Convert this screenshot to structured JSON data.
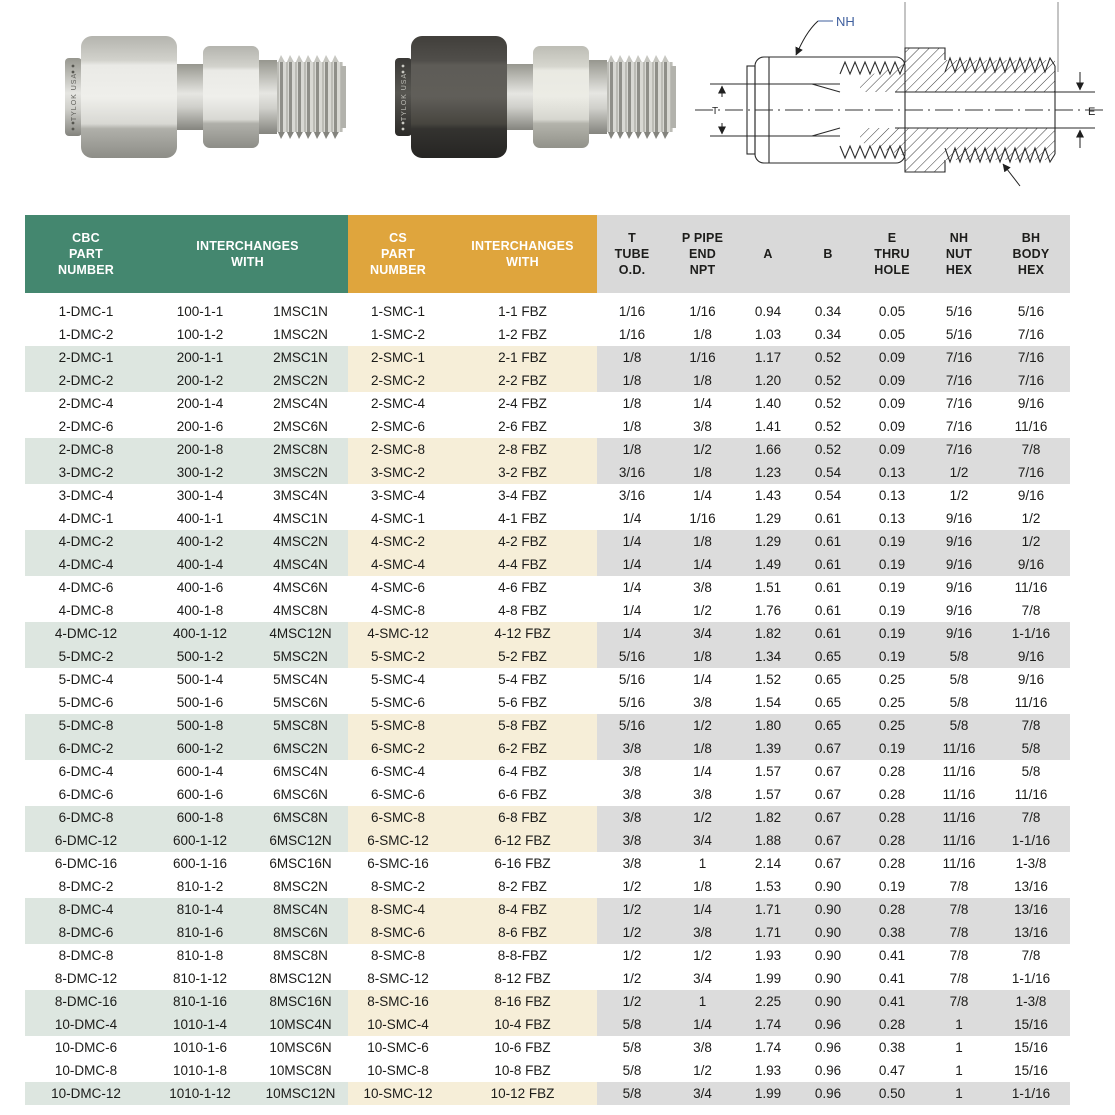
{
  "photos": {
    "steel": {
      "brand_text": "TYLOK USA"
    },
    "black": {
      "brand_text": "TYLOK USA"
    }
  },
  "drawing": {
    "nh_label": "NH",
    "t_label": "T",
    "e_label": "E"
  },
  "table": {
    "headers": [
      {
        "id": "cbc-part-number",
        "group": "green",
        "lines": [
          "CBC",
          "PART",
          "NUMBER"
        ]
      },
      {
        "id": "cbc-interchanges",
        "group": "green",
        "lines": [
          "INTERCHANGES",
          "WITH"
        ]
      },
      {
        "id": "cs-part-number",
        "group": "gold",
        "lines": [
          "CS",
          "PART",
          "NUMBER"
        ]
      },
      {
        "id": "cs-interchanges",
        "group": "gold",
        "lines": [
          "INTERCHANGES",
          "WITH"
        ]
      },
      {
        "id": "t-tube-od",
        "group": "grey",
        "lines": [
          "T",
          "TUBE",
          "O.D."
        ]
      },
      {
        "id": "p-pipe-end-npt",
        "group": "grey",
        "lines": [
          "P PIPE",
          "END",
          "NPT"
        ]
      },
      {
        "id": "a",
        "group": "grey",
        "lines": [
          "A"
        ]
      },
      {
        "id": "b",
        "group": "grey",
        "lines": [
          "B"
        ]
      },
      {
        "id": "e-thru-hole",
        "group": "grey",
        "lines": [
          "E",
          "THRU",
          "HOLE"
        ]
      },
      {
        "id": "nh-nut-hex",
        "group": "grey",
        "lines": [
          "NH",
          "NUT",
          "HEX"
        ]
      },
      {
        "id": "bh-body-hex",
        "group": "grey",
        "lines": [
          "BH",
          "BODY",
          "HEX"
        ]
      }
    ],
    "rows": [
      [
        "1-DMC-1",
        "100-1-1",
        "1MSC1N",
        "1-SMC-1",
        "1-1 FBZ",
        "1/16",
        "1/16",
        "0.94",
        "0.34",
        "0.05",
        "5/16",
        "5/16"
      ],
      [
        "1-DMC-2",
        "100-1-2",
        "1MSC2N",
        "1-SMC-2",
        "1-2 FBZ",
        "1/16",
        "1/8",
        "1.03",
        "0.34",
        "0.05",
        "5/16",
        "7/16"
      ],
      [
        "2-DMC-1",
        "200-1-1",
        "2MSC1N",
        "2-SMC-1",
        "2-1 FBZ",
        "1/8",
        "1/16",
        "1.17",
        "0.52",
        "0.09",
        "7/16",
        "7/16"
      ],
      [
        "2-DMC-2",
        "200-1-2",
        "2MSC2N",
        "2-SMC-2",
        "2-2 FBZ",
        "1/8",
        "1/8",
        "1.20",
        "0.52",
        "0.09",
        "7/16",
        "7/16"
      ],
      [
        "2-DMC-4",
        "200-1-4",
        "2MSC4N",
        "2-SMC-4",
        "2-4 FBZ",
        "1/8",
        "1/4",
        "1.40",
        "0.52",
        "0.09",
        "7/16",
        "9/16"
      ],
      [
        "2-DMC-6",
        "200-1-6",
        "2MSC6N",
        "2-SMC-6",
        "2-6 FBZ",
        "1/8",
        "3/8",
        "1.41",
        "0.52",
        "0.09",
        "7/16",
        "11/16"
      ],
      [
        "2-DMC-8",
        "200-1-8",
        "2MSC8N",
        "2-SMC-8",
        "2-8 FBZ",
        "1/8",
        "1/2",
        "1.66",
        "0.52",
        "0.09",
        "7/16",
        "7/8"
      ],
      [
        "3-DMC-2",
        "300-1-2",
        "3MSC2N",
        "3-SMC-2",
        "3-2 FBZ",
        "3/16",
        "1/8",
        "1.23",
        "0.54",
        "0.13",
        "1/2",
        "7/16"
      ],
      [
        "3-DMC-4",
        "300-1-4",
        "3MSC4N",
        "3-SMC-4",
        "3-4 FBZ",
        "3/16",
        "1/4",
        "1.43",
        "0.54",
        "0.13",
        "1/2",
        "9/16"
      ],
      [
        "4-DMC-1",
        "400-1-1",
        "4MSC1N",
        "4-SMC-1",
        "4-1 FBZ",
        "1/4",
        "1/16",
        "1.29",
        "0.61",
        "0.13",
        "9/16",
        "1/2"
      ],
      [
        "4-DMC-2",
        "400-1-2",
        "4MSC2N",
        "4-SMC-2",
        "4-2 FBZ",
        "1/4",
        "1/8",
        "1.29",
        "0.61",
        "0.19",
        "9/16",
        "1/2"
      ],
      [
        "4-DMC-4",
        "400-1-4",
        "4MSC4N",
        "4-SMC-4",
        "4-4 FBZ",
        "1/4",
        "1/4",
        "1.49",
        "0.61",
        "0.19",
        "9/16",
        "9/16"
      ],
      [
        "4-DMC-6",
        "400-1-6",
        "4MSC6N",
        "4-SMC-6",
        "4-6 FBZ",
        "1/4",
        "3/8",
        "1.51",
        "0.61",
        "0.19",
        "9/16",
        "11/16"
      ],
      [
        "4-DMC-8",
        "400-1-8",
        "4MSC8N",
        "4-SMC-8",
        "4-8 FBZ",
        "1/4",
        "1/2",
        "1.76",
        "0.61",
        "0.19",
        "9/16",
        "7/8"
      ],
      [
        "4-DMC-12",
        "400-1-12",
        "4MSC12N",
        "4-SMC-12",
        "4-12 FBZ",
        "1/4",
        "3/4",
        "1.82",
        "0.61",
        "0.19",
        "9/16",
        "1-1/16"
      ],
      [
        "5-DMC-2",
        "500-1-2",
        "5MSC2N",
        "5-SMC-2",
        "5-2 FBZ",
        "5/16",
        "1/8",
        "1.34",
        "0.65",
        "0.19",
        "5/8",
        "9/16"
      ],
      [
        "5-DMC-4",
        "500-1-4",
        "5MSC4N",
        "5-SMC-4",
        "5-4 FBZ",
        "5/16",
        "1/4",
        "1.52",
        "0.65",
        "0.25",
        "5/8",
        "9/16"
      ],
      [
        "5-DMC-6",
        "500-1-6",
        "5MSC6N",
        "5-SMC-6",
        "5-6 FBZ",
        "5/16",
        "3/8",
        "1.54",
        "0.65",
        "0.25",
        "5/8",
        "11/16"
      ],
      [
        "5-DMC-8",
        "500-1-8",
        "5MSC8N",
        "5-SMC-8",
        "5-8 FBZ",
        "5/16",
        "1/2",
        "1.80",
        "0.65",
        "0.25",
        "5/8",
        "7/8"
      ],
      [
        "6-DMC-2",
        "600-1-2",
        "6MSC2N",
        "6-SMC-2",
        "6-2 FBZ",
        "3/8",
        "1/8",
        "1.39",
        "0.67",
        "0.19",
        "11/16",
        "5/8"
      ],
      [
        "6-DMC-4",
        "600-1-4",
        "6MSC4N",
        "6-SMC-4",
        "6-4 FBZ",
        "3/8",
        "1/4",
        "1.57",
        "0.67",
        "0.28",
        "11/16",
        "5/8"
      ],
      [
        "6-DMC-6",
        "600-1-6",
        "6MSC6N",
        "6-SMC-6",
        "6-6 FBZ",
        "3/8",
        "3/8",
        "1.57",
        "0.67",
        "0.28",
        "11/16",
        "11/16"
      ],
      [
        "6-DMC-8",
        "600-1-8",
        "6MSC8N",
        "6-SMC-8",
        "6-8 FBZ",
        "3/8",
        "1/2",
        "1.82",
        "0.67",
        "0.28",
        "11/16",
        "7/8"
      ],
      [
        "6-DMC-12",
        "600-1-12",
        "6MSC12N",
        "6-SMC-12",
        "6-12 FBZ",
        "3/8",
        "3/4",
        "1.88",
        "0.67",
        "0.28",
        "11/16",
        "1-1/16"
      ],
      [
        "6-DMC-16",
        "600-1-16",
        "6MSC16N",
        "6-SMC-16",
        "6-16 FBZ",
        "3/8",
        "1",
        "2.14",
        "0.67",
        "0.28",
        "11/16",
        "1-3/8"
      ],
      [
        "8-DMC-2",
        "810-1-2",
        "8MSC2N",
        "8-SMC-2",
        "8-2 FBZ",
        "1/2",
        "1/8",
        "1.53",
        "0.90",
        "0.19",
        "7/8",
        "13/16"
      ],
      [
        "8-DMC-4",
        "810-1-4",
        "8MSC4N",
        "8-SMC-4",
        "8-4 FBZ",
        "1/2",
        "1/4",
        "1.71",
        "0.90",
        "0.28",
        "7/8",
        "13/16"
      ],
      [
        "8-DMC-6",
        "810-1-6",
        "8MSC6N",
        "8-SMC-6",
        "8-6 FBZ",
        "1/2",
        "3/8",
        "1.71",
        "0.90",
        "0.38",
        "7/8",
        "13/16"
      ],
      [
        "8-DMC-8",
        "810-1-8",
        "8MSC8N",
        "8-SMC-8",
        "8-8-FBZ",
        "1/2",
        "1/2",
        "1.93",
        "0.90",
        "0.41",
        "7/8",
        "7/8"
      ],
      [
        "8-DMC-12",
        "810-1-12",
        "8MSC12N",
        "8-SMC-12",
        "8-12 FBZ",
        "1/2",
        "3/4",
        "1.99",
        "0.90",
        "0.41",
        "7/8",
        "1-1/16"
      ],
      [
        "8-DMC-16",
        "810-1-16",
        "8MSC16N",
        "8-SMC-16",
        "8-16 FBZ",
        "1/2",
        "1",
        "2.25",
        "0.90",
        "0.41",
        "7/8",
        "1-3/8"
      ],
      [
        "10-DMC-4",
        "1010-1-4",
        "10MSC4N",
        "10-SMC-4",
        "10-4 FBZ",
        "5/8",
        "1/4",
        "1.74",
        "0.96",
        "0.28",
        "1",
        "15/16"
      ],
      [
        "10-DMC-6",
        "1010-1-6",
        "10MSC6N",
        "10-SMC-6",
        "10-6 FBZ",
        "5/8",
        "3/8",
        "1.74",
        "0.96",
        "0.38",
        "1",
        "15/16"
      ],
      [
        "10-DMC-8",
        "1010-1-8",
        "10MSC8N",
        "10-SMC-8",
        "10-8 FBZ",
        "5/8",
        "1/2",
        "1.93",
        "0.96",
        "0.47",
        "1",
        "15/16"
      ],
      [
        "10-DMC-12",
        "1010-1-12",
        "10MSC12N",
        "10-SMC-12",
        "10-12 FBZ",
        "5/8",
        "3/4",
        "1.99",
        "0.96",
        "0.50",
        "1",
        "1-1/16"
      ]
    ]
  }
}
